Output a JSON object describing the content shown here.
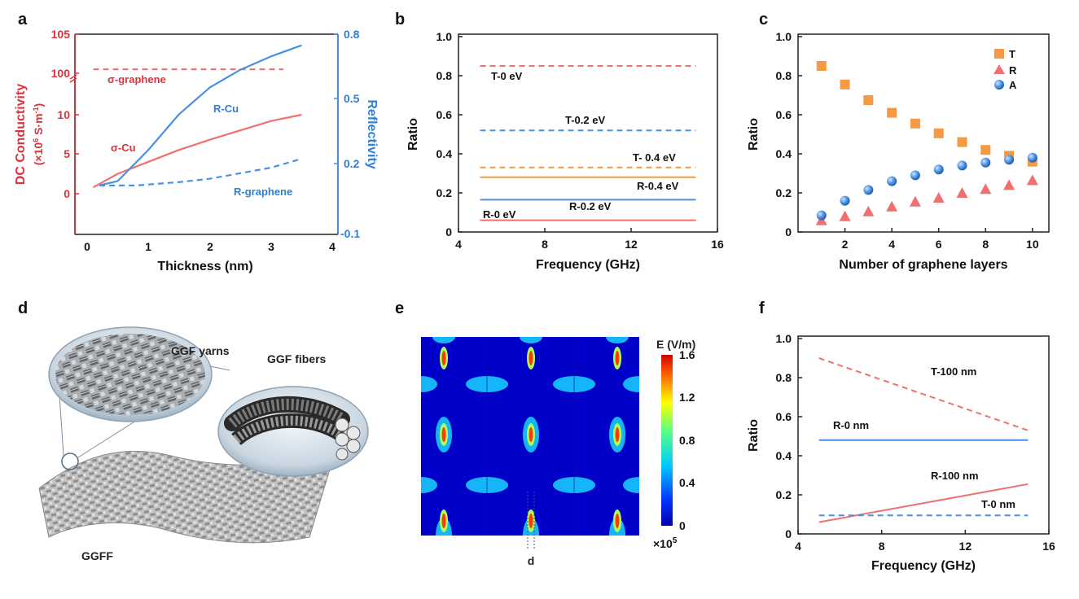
{
  "panels": {
    "a": {
      "label": "a"
    },
    "b": {
      "label": "b"
    },
    "c": {
      "label": "c"
    },
    "d": {
      "label": "d"
    },
    "e": {
      "label": "e"
    },
    "f": {
      "label": "f"
    }
  },
  "colors": {
    "red": "#f07070",
    "red_dark": "#d9343c",
    "blue": "#4a90e2",
    "blue_dark": "#2e7fd6",
    "orange": "#f59a43"
  },
  "illustration_d": {
    "yarns_label": "GGF yarns",
    "fibers_label": "GGF fibers",
    "fabric_label": "GGFF"
  },
  "field_map_e": {
    "colorbar_title": "E (V/m)",
    "colorbar_ticks": [
      "1.6",
      "1.2",
      "0.8",
      "0.4",
      "0"
    ],
    "multiplier": "×10",
    "multiplier_exp": "5",
    "dim_label": "d"
  },
  "chart_data": [
    {
      "id": "a",
      "type": "line",
      "xlabel": "Thickness (nm)",
      "xlim": [
        -0.3,
        4
      ],
      "xticks": [
        "0",
        "1",
        "2",
        "3",
        "4"
      ],
      "ylabel_left_line1": "DC Conductivity",
      "ylabel_left_line2": "(×10",
      "ylabel_left_sup": "6",
      "ylabel_left_line3": " S·m",
      "ylabel_left_sup2": "-1",
      "ylabel_left_line4": ")",
      "yticks_left": [
        "105",
        "100",
        "10",
        "5",
        "0"
      ],
      "ylabel_right": "Reflectivity",
      "yticks_right": [
        "0.8",
        "0.5",
        "0.2",
        "-0.1"
      ],
      "series": [
        {
          "name": "σ-graphene",
          "style": "dashed",
          "axis": "left",
          "x": [
            0.1,
            3.2
          ],
          "y": [
            100.5,
            100.5
          ]
        },
        {
          "name": "σ-Cu",
          "style": "solid",
          "axis": "left",
          "x": [
            0.1,
            0.5,
            1.0,
            1.5,
            2.0,
            2.5,
            3.0,
            3.5
          ],
          "y": [
            0.8,
            2.5,
            4.0,
            5.5,
            6.8,
            8.0,
            9.2,
            10.5
          ]
        },
        {
          "name": "R-Cu",
          "style": "solid",
          "axis": "right",
          "x": [
            0.2,
            0.5,
            1.0,
            1.5,
            2.0,
            2.5,
            3.0,
            3.5
          ],
          "y": [
            0.12,
            0.14,
            0.28,
            0.44,
            0.56,
            0.64,
            0.7,
            0.75
          ]
        },
        {
          "name": "R-graphene",
          "style": "dashed",
          "axis": "right",
          "x": [
            0.2,
            0.8,
            1.5,
            2.0,
            2.5,
            3.0,
            3.5
          ],
          "y": [
            0.12,
            0.12,
            0.135,
            0.15,
            0.175,
            0.2,
            0.24
          ]
        }
      ],
      "annotations": [
        "σ-graphene",
        "R-Cu",
        "10",
        "σ-Cu",
        "R-graphene"
      ]
    },
    {
      "id": "b",
      "type": "line",
      "xlabel": "Frequency (GHz)",
      "ylabel": "Ratio",
      "xlim": [
        4,
        16
      ],
      "ylim": [
        0,
        1.0
      ],
      "xticks": [
        "4",
        "8",
        "12",
        "16"
      ],
      "yticks": [
        "1.0",
        "0.8",
        "0.6",
        "0.4",
        "0.2",
        "0"
      ],
      "series": [
        {
          "name": "T-0 eV",
          "style": "dashed",
          "color": "red",
          "x": [
            5,
            15
          ],
          "y": [
            0.85,
            0.85
          ]
        },
        {
          "name": "T-0.2 eV",
          "style": "dashed",
          "color": "blue",
          "x": [
            5,
            15
          ],
          "y": [
            0.52,
            0.52
          ]
        },
        {
          "name": "T- 0.4 eV",
          "style": "dashed",
          "color": "orange",
          "x": [
            5,
            15
          ],
          "y": [
            0.33,
            0.33
          ]
        },
        {
          "name": "R-0.4 eV",
          "style": "solid",
          "color": "orange",
          "x": [
            5,
            15
          ],
          "y": [
            0.28,
            0.28
          ]
        },
        {
          "name": "R-0.2 eV",
          "style": "solid",
          "color": "blue",
          "x": [
            5,
            15
          ],
          "y": [
            0.165,
            0.165
          ]
        },
        {
          "name": "R-0 eV",
          "style": "solid",
          "color": "red",
          "x": [
            5,
            15
          ],
          "y": [
            0.06,
            0.06
          ]
        }
      ]
    },
    {
      "id": "c",
      "type": "scatter",
      "xlabel": "Number of graphene layers",
      "ylabel": "Ratio",
      "xlim": [
        0,
        10.7
      ],
      "ylim": [
        0,
        1.0
      ],
      "xticks": [
        "2",
        "4",
        "6",
        "8",
        "10"
      ],
      "yticks": [
        "1.0",
        "0.8",
        "0.6",
        "0.4",
        "0.2",
        "0"
      ],
      "legend_position": "top-right",
      "series": [
        {
          "name": "T",
          "marker": "square",
          "color": "orange",
          "x": [
            1,
            2,
            3,
            4,
            5,
            6,
            7,
            8,
            9,
            10
          ],
          "y": [
            0.85,
            0.755,
            0.675,
            0.61,
            0.555,
            0.505,
            0.46,
            0.42,
            0.39,
            0.36
          ]
        },
        {
          "name": "R",
          "marker": "triangle",
          "color": "red",
          "x": [
            1,
            2,
            3,
            4,
            5,
            6,
            7,
            8,
            9,
            10
          ],
          "y": [
            0.06,
            0.08,
            0.105,
            0.13,
            0.155,
            0.175,
            0.2,
            0.22,
            0.24,
            0.265
          ]
        },
        {
          "name": "A",
          "marker": "circle",
          "color": "blue",
          "x": [
            1,
            2,
            3,
            4,
            5,
            6,
            7,
            8,
            9,
            10
          ],
          "y": [
            0.085,
            0.16,
            0.215,
            0.26,
            0.29,
            0.32,
            0.34,
            0.355,
            0.37,
            0.38
          ]
        }
      ]
    },
    {
      "id": "f",
      "type": "line",
      "xlabel": "Frequency (GHz)",
      "ylabel": "Ratio",
      "xlim": [
        4,
        16
      ],
      "ylim": [
        0,
        1.0
      ],
      "xticks": [
        "4",
        "8",
        "12",
        "16"
      ],
      "yticks": [
        "1.0",
        "0.8",
        "0.6",
        "0.4",
        "0.2",
        "0"
      ],
      "series": [
        {
          "name": "T-100 nm",
          "style": "dashed",
          "color": "red",
          "x": [
            5,
            15
          ],
          "y": [
            0.9,
            0.53
          ]
        },
        {
          "name": "R-0 nm",
          "style": "solid",
          "color": "blue",
          "x": [
            5,
            15
          ],
          "y": [
            0.48,
            0.48
          ]
        },
        {
          "name": "R-100 nm",
          "style": "solid",
          "color": "red",
          "x": [
            5,
            15
          ],
          "y": [
            0.06,
            0.255
          ]
        },
        {
          "name": "T-0 nm",
          "style": "dashed",
          "color": "blue",
          "x": [
            5,
            15
          ],
          "y": [
            0.095,
            0.095
          ]
        }
      ]
    }
  ]
}
